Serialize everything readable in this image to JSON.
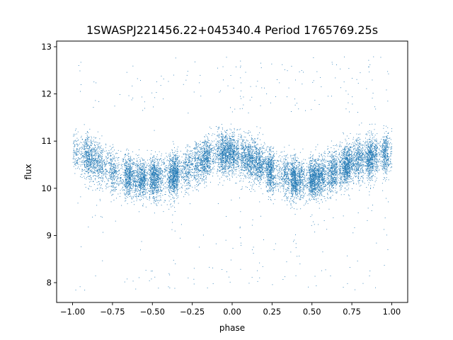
{
  "chart_data": {
    "type": "scatter",
    "title": "1SWASPJ221456.22+045340.4 Period 1765769.25s",
    "xlabel": "phase",
    "ylabel": "flux",
    "xlim": [
      -1.1,
      1.1
    ],
    "ylim": [
      7.58,
      13.12
    ],
    "x_ticks": [
      -1.0,
      -0.75,
      -0.5,
      -0.25,
      0.0,
      0.25,
      0.5,
      0.75,
      1.0
    ],
    "x_tick_labels": [
      "−1.00",
      "−0.75",
      "−0.50",
      "−0.25",
      "0.00",
      "0.25",
      "0.50",
      "0.75",
      "1.00"
    ],
    "y_ticks": [
      8,
      9,
      10,
      11,
      12,
      13
    ],
    "y_tick_labels": [
      "8",
      "9",
      "10",
      "11",
      "12",
      "13"
    ],
    "grid": false,
    "legend": "none",
    "marker_color": "#1f77b4",
    "series": [
      {
        "phase_range": [
          -1.0,
          1.0
        ],
        "baseline_profile": {
          "phase": [
            -1.0,
            -0.9,
            -0.75,
            -0.6,
            -0.5,
            -0.35,
            -0.2,
            -0.1,
            0.0,
            0.1,
            0.25,
            0.4,
            0.5,
            0.6,
            0.75,
            0.9,
            1.0
          ],
          "flux": [
            10.75,
            10.65,
            10.35,
            10.2,
            10.2,
            10.3,
            10.55,
            10.75,
            10.75,
            10.65,
            10.35,
            10.2,
            10.2,
            10.3,
            10.55,
            10.7,
            10.75
          ]
        },
        "typical_scatter": 0.4,
        "outlier_range": [
          7.85,
          12.8
        ],
        "approx_points": 14000
      }
    ]
  }
}
